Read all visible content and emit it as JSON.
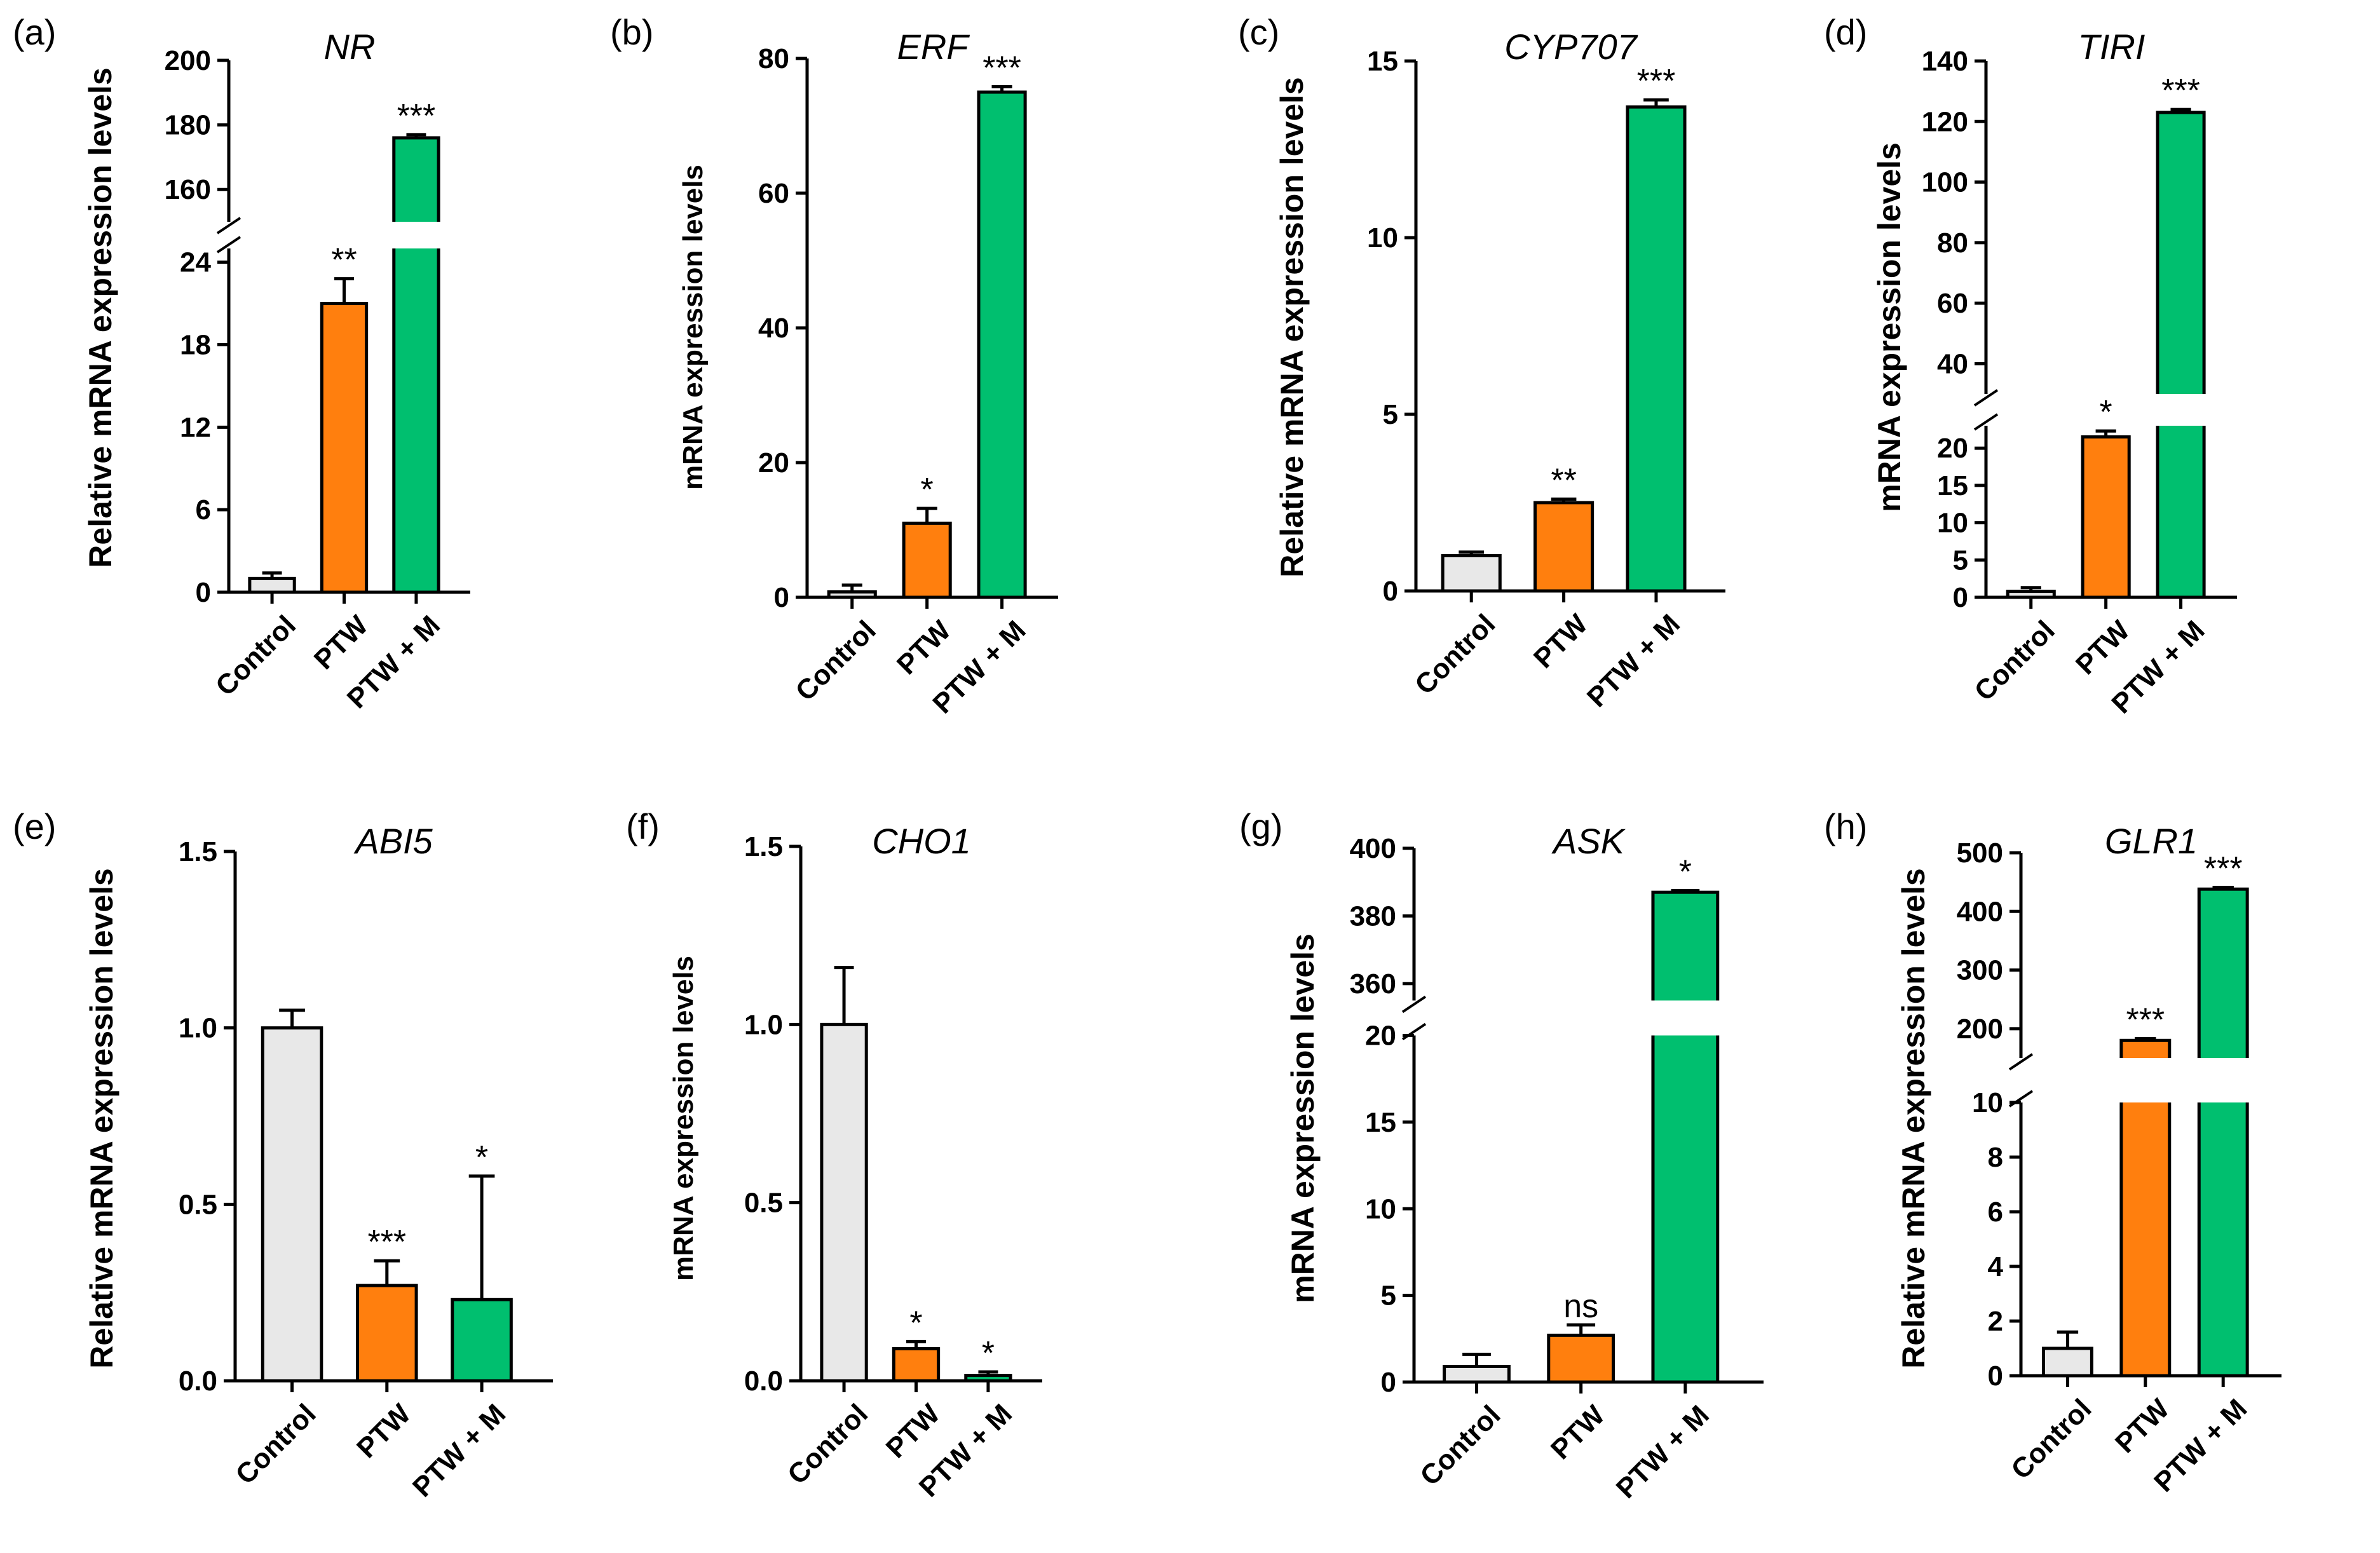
{
  "figure": {
    "category_labels": [
      "Control",
      "PTW",
      "PTW + M"
    ],
    "colors": {
      "Control": "#e8e8e8",
      "PTW": "#ff7f0e",
      "PTW + M": "#00bf6f"
    }
  },
  "chart_data": [
    {
      "panel": "(a)",
      "title": "NR",
      "type": "bar",
      "ylabel": "Relative mRNA expression levels",
      "categories": [
        "Control",
        "PTW",
        "PTW + M"
      ],
      "values": [
        1,
        21,
        176
      ],
      "errors": [
        0.4,
        1.8,
        1.0
      ],
      "significance": [
        "",
        "**",
        "***"
      ],
      "axis_break": true,
      "lower_ylim": [
        0,
        25
      ],
      "lower_ticks": [
        0,
        6,
        12,
        18,
        24
      ],
      "lower_ticklabels": [
        "0",
        "6",
        "12",
        "18",
        "24"
      ],
      "upper_ylim": [
        150,
        200
      ],
      "upper_ticks": [
        160,
        180,
        200
      ],
      "upper_ticklabels": [
        "160",
        "180",
        "200"
      ]
    },
    {
      "panel": "(b)",
      "title": "ERF",
      "type": "bar",
      "ylabel": "mRNA expression levels",
      "categories": [
        "Control",
        "PTW",
        "PTW + M"
      ],
      "values": [
        0.8,
        11,
        75
      ],
      "errors": [
        1.0,
        2.2,
        0.8
      ],
      "significance": [
        "",
        "*",
        "***"
      ],
      "axis_break": false,
      "ylim": [
        0,
        80
      ],
      "ticks": [
        0,
        20,
        40,
        60,
        80
      ],
      "ticklabels": [
        "0",
        "20",
        "40",
        "60",
        "80"
      ]
    },
    {
      "panel": "(c)",
      "title": "CYP707",
      "type": "bar",
      "ylabel": "Relative mRNA expression levels",
      "categories": [
        "Control",
        "PTW",
        "PTW + M"
      ],
      "values": [
        1,
        2.5,
        13.7
      ],
      "errors": [
        0.1,
        0.1,
        0.2
      ],
      "significance": [
        "",
        "**",
        "***"
      ],
      "axis_break": false,
      "ylim": [
        0,
        15
      ],
      "ticks": [
        0,
        5,
        10,
        15
      ],
      "ticklabels": [
        "0",
        "5",
        "10",
        "15"
      ]
    },
    {
      "panel": "(d)",
      "title": "TIRI",
      "type": "bar",
      "ylabel": "mRNA expression levels",
      "categories": [
        "Control",
        "PTW",
        "PTW + M"
      ],
      "values": [
        0.8,
        21.5,
        123
      ],
      "errors": [
        0.5,
        0.8,
        1.0
      ],
      "significance": [
        "",
        "*",
        "***"
      ],
      "axis_break": true,
      "lower_ylim": [
        0,
        23
      ],
      "lower_ticks": [
        0,
        5,
        10,
        15,
        20
      ],
      "lower_ticklabels": [
        "0",
        "5",
        "10",
        "15",
        "20"
      ],
      "upper_ylim": [
        30,
        140
      ],
      "upper_ticks": [
        40,
        60,
        80,
        100,
        120,
        140
      ],
      "upper_ticklabels": [
        "40",
        "60",
        "80",
        "100",
        "120",
        "140"
      ]
    },
    {
      "panel": "(e)",
      "title": "ABI5",
      "type": "bar",
      "ylabel": "Relative mRNA expression levels",
      "categories": [
        "Control",
        "PTW",
        "PTW + M"
      ],
      "values": [
        1.0,
        0.27,
        0.23
      ],
      "errors": [
        0.05,
        0.07,
        0.35
      ],
      "significance": [
        "",
        "***",
        "*"
      ],
      "axis_break": false,
      "ylim": [
        0,
        1.5
      ],
      "ticks": [
        0,
        0.5,
        1.0,
        1.5
      ],
      "ticklabels": [
        "0.0",
        "0.5",
        "1.0",
        "1.5"
      ]
    },
    {
      "panel": "(f)",
      "title": "CHO1",
      "type": "bar",
      "ylabel": "mRNA expression levels",
      "categories": [
        "Control",
        "PTW",
        "PTW + M"
      ],
      "values": [
        1.0,
        0.09,
        0.015
      ],
      "errors": [
        0.16,
        0.02,
        0.01
      ],
      "significance": [
        "",
        "*",
        "*"
      ],
      "axis_break": false,
      "ylim": [
        0,
        1.5
      ],
      "ticks": [
        0,
        0.5,
        1.0,
        1.5
      ],
      "ticklabels": [
        "0.0",
        "0.5",
        "1.0",
        "1.5"
      ]
    },
    {
      "panel": "(g)",
      "title": "ASK",
      "type": "bar",
      "ylabel": "mRNA expression levels",
      "categories": [
        "Control",
        "PTW",
        "PTW + M"
      ],
      "values": [
        0.9,
        2.7,
        387
      ],
      "errors": [
        0.7,
        0.6,
        0.5
      ],
      "significance": [
        "",
        "ns",
        "*"
      ],
      "axis_break": true,
      "lower_ylim": [
        0,
        20
      ],
      "lower_ticks": [
        0,
        5,
        10,
        15,
        20
      ],
      "lower_ticklabels": [
        "0",
        "5",
        "10",
        "15",
        "20"
      ],
      "upper_ylim": [
        355,
        400
      ],
      "upper_ticks": [
        360,
        380,
        400
      ],
      "upper_ticklabels": [
        "360",
        "380",
        "400"
      ]
    },
    {
      "panel": "(h)",
      "title": "GLR1",
      "type": "bar",
      "ylabel": "Relative mRNA expression levels",
      "categories": [
        "Control",
        "PTW",
        "PTW + M"
      ],
      "values": [
        1,
        180,
        438
      ],
      "errors": [
        0.6,
        3,
        3
      ],
      "significance": [
        "",
        "***",
        "***"
      ],
      "axis_break": true,
      "lower_ylim": [
        0,
        10
      ],
      "lower_ticks": [
        0,
        2,
        4,
        6,
        8,
        10
      ],
      "lower_ticklabels": [
        "0",
        "2",
        "4",
        "6",
        "8",
        "10"
      ],
      "upper_ylim": [
        150,
        500
      ],
      "upper_ticks": [
        200,
        300,
        400,
        500
      ],
      "upper_ticklabels": [
        "200",
        "300",
        "400",
        "500"
      ]
    }
  ]
}
